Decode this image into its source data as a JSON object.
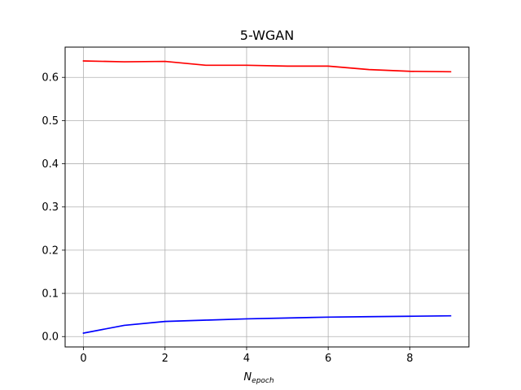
{
  "chart_data": {
    "type": "line",
    "title": "5-WGAN",
    "xlabel": "N",
    "xlabel_subscript": "epoch",
    "ylabel": "",
    "xlim": [
      -0.45,
      9.45
    ],
    "ylim": [
      -0.024,
      0.67
    ],
    "xticks": [
      0,
      2,
      4,
      6,
      8
    ],
    "xtick_labels": [
      "0",
      "2",
      "4",
      "6",
      "8"
    ],
    "yticks": [
      0.0,
      0.1,
      0.2,
      0.3,
      0.4,
      0.5,
      0.6
    ],
    "ytick_labels": [
      "0.0",
      "0.1",
      "0.2",
      "0.3",
      "0.4",
      "0.5",
      "0.6"
    ],
    "grid": true,
    "legend": "none",
    "x": [
      0,
      1,
      2,
      3,
      4,
      5,
      6,
      7,
      8,
      9
    ],
    "series": [
      {
        "color": "#ff0000",
        "values": [
          0.638,
          0.636,
          0.637,
          0.628,
          0.628,
          0.626,
          0.626,
          0.618,
          0.614,
          0.613
        ]
      },
      {
        "color": "#0000ff",
        "values": [
          0.008,
          0.026,
          0.035,
          0.038,
          0.041,
          0.043,
          0.045,
          0.046,
          0.047,
          0.048
        ]
      }
    ]
  }
}
